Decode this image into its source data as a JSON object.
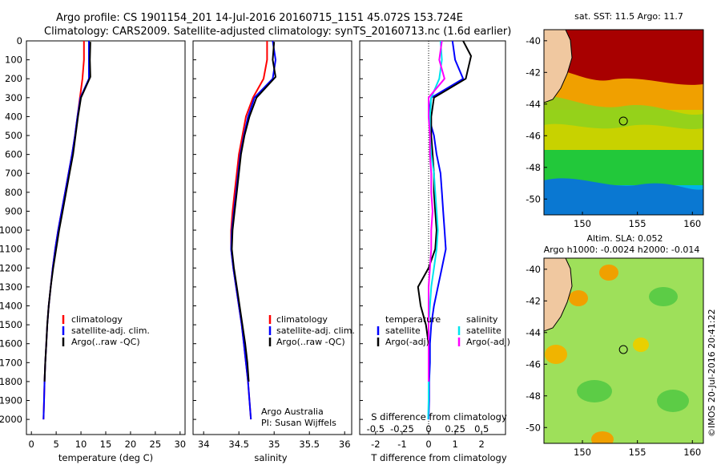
{
  "header": {
    "line1": "Argo profile: CS 1901154_201 14-Jul-2016 20160715_1151 45.072S 153.724E",
    "line2": "Climatology: CARS2009. Satellite-adjusted climatology: synTS_20160713.nc (1.6d earlier)"
  },
  "colors": {
    "climatology": "#ff0000",
    "satellite": "#0000ff",
    "argo": "#000000",
    "sat_salinity": "#00e5ee",
    "argo_salinity": "#ff00ff"
  },
  "chart_data": [
    {
      "type": "line",
      "id": "temperature",
      "xlabel": "temperature (deg C)",
      "ylabel": "",
      "xlim": [
        -1,
        31
      ],
      "ylim": [
        2080,
        0
      ],
      "xticks": [
        0,
        5,
        10,
        15,
        20,
        25,
        30
      ],
      "yticks": [
        0,
        100,
        200,
        300,
        400,
        500,
        600,
        700,
        800,
        900,
        1000,
        1100,
        1200,
        1300,
        1400,
        1500,
        1600,
        1700,
        1800,
        1900,
        2000
      ],
      "legend": [
        "climatology",
        "satellite-adj. clim.",
        "Argo(..raw -QC)"
      ],
      "series": [
        {
          "name": "climatology",
          "color": "#ff0000",
          "x": [
            10.6,
            10.6,
            10.3,
            9.8,
            9.3,
            8.8,
            8.2,
            7.5,
            6.8,
            6.1,
            5.4,
            4.8,
            4.3,
            3.9,
            3.5,
            3.2,
            3.0,
            2.8,
            2.65,
            2.55,
            2.45
          ],
          "y": [
            0,
            100,
            200,
            300,
            400,
            500,
            600,
            700,
            800,
            900,
            1000,
            1100,
            1200,
            1300,
            1400,
            1500,
            1600,
            1700,
            1800,
            1900,
            2000
          ]
        },
        {
          "name": "satellite-adj. clim.",
          "color": "#0000ff",
          "x": [
            11.6,
            11.6,
            11.6,
            9.9,
            9.3,
            8.8,
            8.2,
            7.5,
            6.8,
            6.1,
            5.4,
            4.8,
            4.3,
            3.9,
            3.5,
            3.2,
            3.0,
            2.8,
            2.65,
            2.55,
            2.45
          ],
          "y": [
            0,
            100,
            200,
            300,
            400,
            500,
            600,
            700,
            800,
            900,
            1000,
            1100,
            1200,
            1300,
            1400,
            1500,
            1600,
            1700,
            1800,
            1900,
            2000
          ]
        },
        {
          "name": "Argo(..raw -QC)",
          "color": "#000000",
          "x": [
            11.9,
            11.8,
            11.9,
            10.0,
            9.4,
            8.9,
            8.4,
            7.7,
            7.0,
            6.3,
            5.6,
            5.0,
            4.4,
            3.9,
            3.5,
            3.2,
            3.0,
            2.8,
            2.65
          ],
          "y": [
            5,
            100,
            190,
            300,
            400,
            500,
            600,
            700,
            800,
            900,
            1000,
            1100,
            1200,
            1300,
            1400,
            1500,
            1600,
            1700,
            1800
          ]
        }
      ]
    },
    {
      "type": "line",
      "id": "salinity",
      "xlabel": "salinity",
      "ylabel": "",
      "xlim": [
        33.85,
        36.1
      ],
      "ylim": [
        2080,
        0
      ],
      "xticks": [
        34,
        34.5,
        35,
        35.5,
        36
      ],
      "yticks": [],
      "legend": [
        "climatology",
        "satellite-adj. clim.",
        "Argo(..raw -QC)"
      ],
      "annotation": [
        "Argo Australia",
        "PI: Susan Wijffels"
      ],
      "series": [
        {
          "name": "climatology",
          "color": "#ff0000",
          "x": [
            34.9,
            34.9,
            34.85,
            34.7,
            34.6,
            34.55,
            34.5,
            34.47,
            34.44,
            34.41,
            34.39,
            34.39,
            34.42,
            34.46,
            34.5,
            34.54,
            34.57,
            34.6,
            34.63,
            34.65,
            34.67
          ],
          "y": [
            0,
            100,
            200,
            300,
            400,
            500,
            600,
            700,
            800,
            900,
            1000,
            1100,
            1200,
            1300,
            1400,
            1500,
            1600,
            1700,
            1800,
            1900,
            2000
          ]
        },
        {
          "name": "satellite-adj. clim.",
          "color": "#0000ff",
          "x": [
            34.98,
            35.02,
            34.98,
            34.72,
            34.63,
            34.57,
            34.52,
            34.49,
            34.46,
            34.43,
            34.4,
            34.39,
            34.42,
            34.46,
            34.5,
            34.54,
            34.57,
            34.6,
            34.63,
            34.65,
            34.67
          ],
          "y": [
            0,
            100,
            200,
            300,
            400,
            500,
            600,
            700,
            800,
            900,
            1000,
            1100,
            1200,
            1300,
            1400,
            1500,
            1600,
            1700,
            1800,
            1900,
            2000
          ]
        },
        {
          "name": "Argo(..raw -QC)",
          "color": "#000000",
          "x": [
            35.0,
            34.98,
            35.02,
            34.75,
            34.65,
            34.58,
            34.53,
            34.5,
            34.47,
            34.44,
            34.41,
            34.4,
            34.43,
            34.47,
            34.51,
            34.55,
            34.59,
            34.62,
            34.64
          ],
          "y": [
            5,
            100,
            190,
            300,
            400,
            500,
            600,
            700,
            800,
            900,
            1000,
            1100,
            1200,
            1300,
            1400,
            1500,
            1600,
            1700,
            1800
          ]
        }
      ]
    },
    {
      "type": "line",
      "id": "difference",
      "xlabel": "T difference from climatology",
      "xlabel_top": "S difference from climatology",
      "xlim": [
        -2.6,
        2.9
      ],
      "ylim": [
        2080,
        0
      ],
      "xticks": [
        -2,
        -1,
        0,
        1,
        2
      ],
      "xticks_s": [
        "-0.5",
        "-0.25",
        "0",
        "0.25",
        "0.5"
      ],
      "legend_temperature": [
        "temperature",
        "satellite",
        "Argo(-adj)"
      ],
      "legend_salinity": [
        "salinity",
        "satellite",
        "Argo(-adj)"
      ],
      "series": [
        {
          "name": "temperature satellite",
          "color": "#0000ff",
          "x": [
            0.9,
            1.0,
            1.3,
            0.1,
            0.0,
            0.2,
            0.3,
            0.45,
            0.5,
            0.55,
            0.6,
            0.65,
            0.5,
            0.35,
            0.2,
            0.1,
            0.05,
            0.05,
            0.02,
            0.02,
            0.0
          ],
          "y": [
            0,
            100,
            200,
            300,
            400,
            500,
            600,
            700,
            800,
            900,
            1000,
            1100,
            1200,
            1300,
            1400,
            1500,
            1600,
            1700,
            1800,
            1900,
            2000
          ]
        },
        {
          "name": "temperature Argo(-adj)",
          "color": "#000000",
          "x": [
            1.3,
            1.6,
            1.4,
            0.2,
            0.1,
            0.1,
            0.15,
            0.2,
            0.2,
            0.25,
            0.3,
            0.25,
            0.0,
            -0.4,
            -0.3,
            -0.1,
            0.0,
            0.0,
            0.0
          ],
          "y": [
            0,
            80,
            200,
            300,
            400,
            500,
            600,
            700,
            800,
            900,
            1000,
            1100,
            1200,
            1300,
            1400,
            1500,
            1600,
            1700,
            1800
          ]
        },
        {
          "name": "salinity satellite",
          "color": "#00e5ee",
          "x": [
            0.45,
            0.5,
            0.4,
            0.1,
            0.05,
            0.05,
            0.1,
            0.2,
            0.25,
            0.3,
            0.35,
            0.3,
            0.2,
            0.1,
            0.05,
            0.0,
            0.0,
            0.0,
            0.0,
            0.0,
            -0.02
          ],
          "y": [
            0,
            100,
            200,
            300,
            400,
            500,
            600,
            700,
            800,
            900,
            1000,
            1100,
            1200,
            1300,
            1400,
            1500,
            1600,
            1700,
            1800,
            1900,
            2000
          ]
        },
        {
          "name": "salinity Argo(-adj)",
          "color": "#ff00ff",
          "x": [
            0.5,
            0.4,
            0.6,
            0.0,
            0.0,
            0.05,
            0.05,
            0.1,
            0.1,
            0.15,
            0.1,
            0.1,
            0.05,
            0.0,
            0.0,
            0.0,
            0.0,
            0.0,
            0.0
          ],
          "y": [
            0,
            100,
            200,
            300,
            400,
            500,
            600,
            700,
            800,
            900,
            1000,
            1100,
            1200,
            1300,
            1400,
            1500,
            1600,
            1700,
            1800
          ]
        }
      ]
    },
    {
      "type": "heatmap",
      "id": "sst_map",
      "title": "sat. SST: 11.5 Argo: 11.7",
      "xlim": [
        146.5,
        161
      ],
      "ylim": [
        -51,
        -39.3
      ],
      "xticks": [
        150,
        155,
        160
      ],
      "yticks": [
        -40,
        -42,
        -44,
        -46,
        -48,
        -50
      ],
      "float_position": {
        "lon": 153.724,
        "lat": -45.072
      }
    },
    {
      "type": "heatmap",
      "id": "sla_map",
      "title_line1": "Altim. SLA: 0.052",
      "title_line2": "Argo h1000: -0.0024 h2000: -0.014",
      "xlim": [
        146.5,
        161
      ],
      "ylim": [
        -51,
        -39.3
      ],
      "xticks": [
        150,
        155,
        160
      ],
      "yticks": [
        -40,
        -42,
        -44,
        -46,
        -48,
        -50
      ],
      "float_position": {
        "lon": 153.724,
        "lat": -45.072
      }
    }
  ],
  "legend_labels": {
    "climatology": "climatology",
    "satellite_adj": "satellite-adj. clim.",
    "argo_raw": "Argo(..raw -QC)",
    "temperature": "temperature",
    "salinity": "salinity",
    "satellite": "satellite",
    "argo_adj": "Argo(-adj)"
  },
  "annotation": {
    "line1": "Argo Australia",
    "line2": "PI: Susan Wijffels"
  },
  "credit": "©IMOS 20-Jul-2016 20:41:22"
}
